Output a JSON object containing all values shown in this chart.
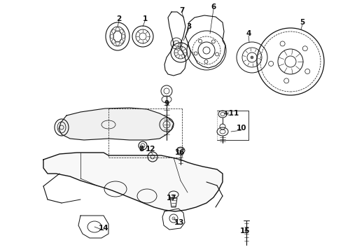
{
  "bg_color": "#ffffff",
  "line_color": "#111111",
  "fig_w": 4.9,
  "fig_h": 3.6,
  "dpi": 100,
  "label_fs": 7.5,
  "labels": [
    [
      "2",
      170,
      27
    ],
    [
      "1",
      207,
      27
    ],
    [
      "7",
      260,
      15
    ],
    [
      "3",
      270,
      38
    ],
    [
      "6",
      305,
      10
    ],
    [
      "4",
      355,
      48
    ],
    [
      "5",
      432,
      32
    ],
    [
      "9",
      238,
      148
    ],
    [
      "8",
      202,
      213
    ],
    [
      "12",
      215,
      213
    ],
    [
      "+11",
      330,
      162
    ],
    [
      "10",
      345,
      183
    ],
    [
      "16",
      257,
      218
    ],
    [
      "17",
      245,
      283
    ],
    [
      "14",
      148,
      326
    ],
    [
      "13",
      256,
      318
    ],
    [
      "15",
      350,
      330
    ]
  ]
}
